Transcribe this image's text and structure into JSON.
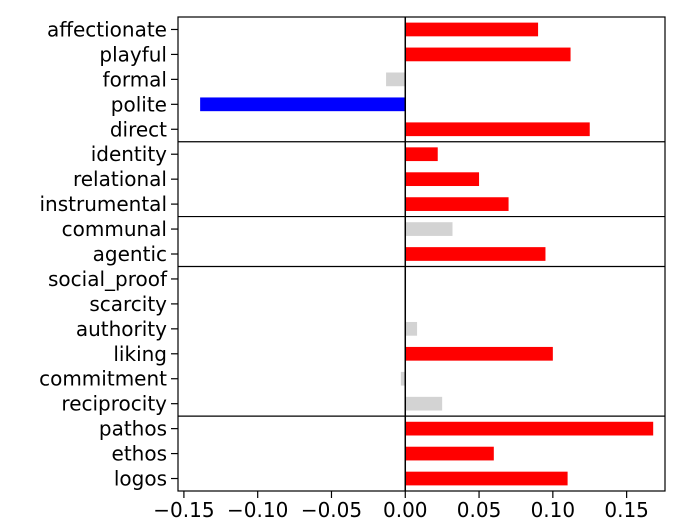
{
  "chart_data": {
    "type": "bar",
    "orientation": "horizontal",
    "categories": [
      "affectionate",
      "playful",
      "formal",
      "polite",
      "direct",
      "identity",
      "relational",
      "instrumental",
      "communal",
      "agentic",
      "social_proof",
      "scarcity",
      "authority",
      "liking",
      "commitment",
      "reciprocity",
      "pathos",
      "ethos",
      "logos"
    ],
    "values": [
      0.09,
      0.112,
      -0.013,
      -0.139,
      0.125,
      0.022,
      0.05,
      0.07,
      0.032,
      0.095,
      0.0,
      0.0,
      0.008,
      0.1,
      -0.003,
      0.025,
      0.168,
      0.06,
      0.11
    ],
    "bar_colors": [
      "#ff0000",
      "#ff0000",
      "#d3d3d3",
      "#0000ff",
      "#ff0000",
      "#ff0000",
      "#ff0000",
      "#ff0000",
      "#d3d3d3",
      "#ff0000",
      "#d3d3d3",
      "#d3d3d3",
      "#d3d3d3",
      "#ff0000",
      "#d3d3d3",
      "#d3d3d3",
      "#ff0000",
      "#ff0000",
      "#ff0000"
    ],
    "group_boundaries_after": [
      "direct",
      "instrumental",
      "agentic",
      "reciprocity"
    ],
    "x_ticks": [
      -0.15,
      -0.1,
      -0.05,
      0.0,
      0.05,
      0.1,
      0.15
    ],
    "x_tick_labels": [
      "−0.15",
      "−0.10",
      "−0.05",
      "0.00",
      "0.05",
      "0.10",
      "0.15"
    ],
    "xlim": [
      -0.154,
      0.176
    ],
    "title": "",
    "xlabel": "",
    "ylabel": "",
    "grid": false,
    "zero_line": true
  }
}
